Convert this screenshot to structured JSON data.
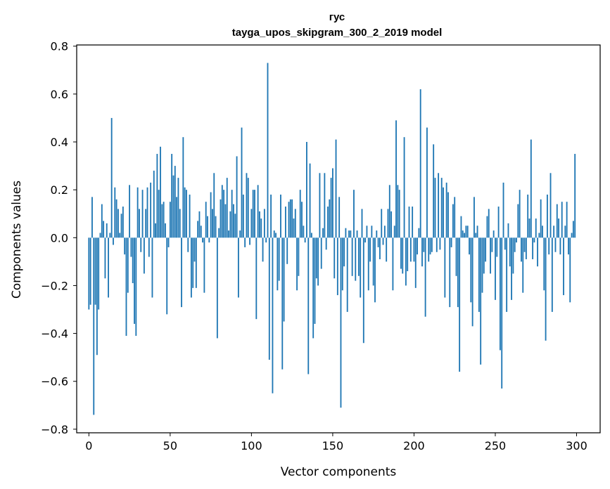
{
  "chart_data": {
    "type": "bar",
    "title_line1": "гус",
    "title_line2": "tayga_upos_skipgram_300_2_2019 model",
    "xlabel": "Vector components",
    "ylabel": "Components values",
    "xlim": [
      -7.5,
      314.5
    ],
    "ylim": [
      -0.815,
      0.805
    ],
    "x_ticks": [
      0,
      50,
      100,
      150,
      200,
      250,
      300
    ],
    "x_tick_labels": [
      "0",
      "50",
      "100",
      "150",
      "200",
      "250",
      "300"
    ],
    "y_ticks": [
      -0.8,
      -0.6,
      -0.4,
      -0.2,
      0.0,
      0.2,
      0.4,
      0.6,
      0.8
    ],
    "y_tick_labels": [
      "−0.8",
      "−0.6",
      "−0.4",
      "−0.2",
      "0.0",
      "0.2",
      "0.4",
      "0.6",
      "0.8"
    ],
    "bar_color": "#1f77b4",
    "x": [
      0,
      1,
      2,
      3,
      4,
      5,
      6,
      7,
      8,
      9,
      10,
      11,
      12,
      13,
      14,
      15,
      16,
      17,
      18,
      19,
      20,
      21,
      22,
      23,
      24,
      25,
      26,
      27,
      28,
      29,
      30,
      31,
      32,
      33,
      34,
      35,
      36,
      37,
      38,
      39,
      40,
      41,
      42,
      43,
      44,
      45,
      46,
      47,
      48,
      49,
      50,
      51,
      52,
      53,
      54,
      55,
      56,
      57,
      58,
      59,
      60,
      61,
      62,
      63,
      64,
      65,
      66,
      67,
      68,
      69,
      70,
      71,
      72,
      73,
      74,
      75,
      76,
      77,
      78,
      79,
      80,
      81,
      82,
      83,
      84,
      85,
      86,
      87,
      88,
      89,
      90,
      91,
      92,
      93,
      94,
      95,
      96,
      97,
      98,
      99,
      100,
      101,
      102,
      103,
      104,
      105,
      106,
      107,
      108,
      109,
      110,
      111,
      112,
      113,
      114,
      115,
      116,
      117,
      118,
      119,
      120,
      121,
      122,
      123,
      124,
      125,
      126,
      127,
      128,
      129,
      130,
      131,
      132,
      133,
      134,
      135,
      136,
      137,
      138,
      139,
      140,
      141,
      142,
      143,
      144,
      145,
      146,
      147,
      148,
      149,
      150,
      151,
      152,
      153,
      154,
      155,
      156,
      157,
      158,
      159,
      160,
      161,
      162,
      163,
      164,
      165,
      166,
      167,
      168,
      169,
      170,
      171,
      172,
      173,
      174,
      175,
      176,
      177,
      178,
      179,
      180,
      181,
      182,
      183,
      184,
      185,
      186,
      187,
      188,
      189,
      190,
      191,
      192,
      193,
      194,
      195,
      196,
      197,
      198,
      199,
      200,
      201,
      202,
      203,
      204,
      205,
      206,
      207,
      208,
      209,
      210,
      211,
      212,
      213,
      214,
      215,
      216,
      217,
      218,
      219,
      220,
      221,
      222,
      223,
      224,
      225,
      226,
      227,
      228,
      229,
      230,
      231,
      232,
      233,
      234,
      235,
      236,
      237,
      238,
      239,
      240,
      241,
      242,
      243,
      244,
      245,
      246,
      247,
      248,
      249,
      250,
      251,
      252,
      253,
      254,
      255,
      256,
      257,
      258,
      259,
      260,
      261,
      262,
      263,
      264,
      265,
      266,
      267,
      268,
      269,
      270,
      271,
      272,
      273,
      274,
      275,
      276,
      277,
      278,
      279,
      280,
      281,
      282,
      283,
      284,
      285,
      286,
      287,
      288,
      289,
      290,
      291,
      292,
      293,
      294,
      295,
      296,
      297,
      298,
      299
    ],
    "values": [
      -0.3,
      -0.28,
      0.17,
      -0.74,
      -0.28,
      -0.49,
      -0.3,
      0.02,
      0.14,
      0.07,
      -0.17,
      0.06,
      -0.25,
      0.02,
      0.5,
      -0.03,
      0.21,
      0.16,
      0.12,
      0.02,
      0.1,
      0.13,
      -0.07,
      -0.41,
      -0.23,
      0.22,
      -0.08,
      -0.19,
      -0.36,
      -0.41,
      0.21,
      0.12,
      -0.06,
      0.2,
      -0.15,
      0.12,
      0.21,
      -0.08,
      0.23,
      -0.25,
      0.28,
      0.06,
      0.35,
      0.2,
      0.38,
      0.14,
      0.15,
      0.06,
      -0.32,
      -0.04,
      0.15,
      0.35,
      0.26,
      0.3,
      0.17,
      0.25,
      0.12,
      -0.29,
      0.42,
      0.21,
      0.2,
      -0.06,
      0.18,
      -0.25,
      -0.21,
      -0.1,
      -0.21,
      0.07,
      0.11,
      0.05,
      -0.02,
      -0.23,
      0.15,
      0.09,
      -0.02,
      0.19,
      0.12,
      0.27,
      0.09,
      -0.42,
      0.04,
      0.16,
      0.22,
      0.2,
      0.14,
      0.25,
      0.03,
      0.11,
      0.2,
      0.14,
      0.1,
      0.34,
      -0.25,
      0.03,
      0.46,
      0.18,
      -0.04,
      0.27,
      0.25,
      -0.03,
      0.12,
      0.2,
      0.2,
      -0.34,
      0.22,
      0.11,
      0.08,
      -0.1,
      0.12,
      -0.02,
      0.73,
      -0.51,
      0.18,
      -0.65,
      0.03,
      0.02,
      -0.22,
      -0.18,
      0.18,
      -0.55,
      -0.35,
      0.13,
      -0.11,
      0.15,
      0.16,
      0.16,
      0.08,
      0.12,
      -0.22,
      -0.16,
      0.2,
      0.15,
      0.05,
      -0.02,
      0.4,
      -0.57,
      0.31,
      0.02,
      -0.42,
      -0.36,
      -0.17,
      -0.2,
      0.27,
      -0.13,
      0.04,
      0.27,
      -0.05,
      0.13,
      0.16,
      0.25,
      0.29,
      -0.17,
      0.41,
      -0.24,
      0.17,
      -0.71,
      -0.22,
      -0.12,
      0.04,
      -0.31,
      0.03,
      0.03,
      -0.16,
      0.2,
      -0.18,
      0.03,
      -0.16,
      -0.25,
      0.12,
      -0.44,
      -0.02,
      0.05,
      -0.22,
      -0.1,
      0.05,
      -0.2,
      -0.27,
      0.03,
      -0.04,
      -0.09,
      0.12,
      -0.03,
      0.05,
      -0.1,
      0.12,
      0.22,
      0.11,
      -0.22,
      0.05,
      0.49,
      0.22,
      0.2,
      -0.13,
      -0.15,
      0.42,
      -0.2,
      -0.14,
      0.13,
      -0.1,
      0.13,
      -0.1,
      -0.21,
      -0.07,
      0.04,
      0.62,
      -0.12,
      -0.06,
      -0.33,
      0.46,
      -0.1,
      -0.07,
      -0.06,
      0.39,
      0.25,
      -0.06,
      0.27,
      -0.05,
      0.25,
      0.21,
      -0.25,
      0.23,
      0.19,
      -0.29,
      -0.04,
      0.14,
      0.17,
      -0.16,
      -0.29,
      -0.56,
      0.09,
      0.03,
      0.02,
      0.05,
      0.05,
      -0.07,
      -0.27,
      -0.37,
      0.17,
      0.02,
      0.05,
      -0.31,
      -0.53,
      -0.23,
      -0.15,
      -0.1,
      0.09,
      0.12,
      -0.15,
      -0.06,
      0.03,
      -0.26,
      -0.08,
      0.13,
      -0.47,
      -0.63,
      0.23,
      -0.05,
      -0.31,
      0.06,
      -0.12,
      -0.26,
      -0.15,
      -0.06,
      -0.02,
      0.14,
      0.2,
      -0.1,
      -0.23,
      -0.06,
      -0.09,
      0.18,
      0.08,
      0.41,
      -0.09,
      -0.02,
      0.08,
      -0.12,
      0.02,
      0.16,
      0.05,
      -0.22,
      -0.43,
      0.18,
      -0.07,
      0.27,
      -0.31,
      0.05,
      -0.06,
      0.14,
      0.08,
      -0.07,
      0.15,
      -0.24,
      0.05,
      0.15,
      -0.07,
      -0.27,
      0.02,
      0.07,
      0.35
    ]
  }
}
